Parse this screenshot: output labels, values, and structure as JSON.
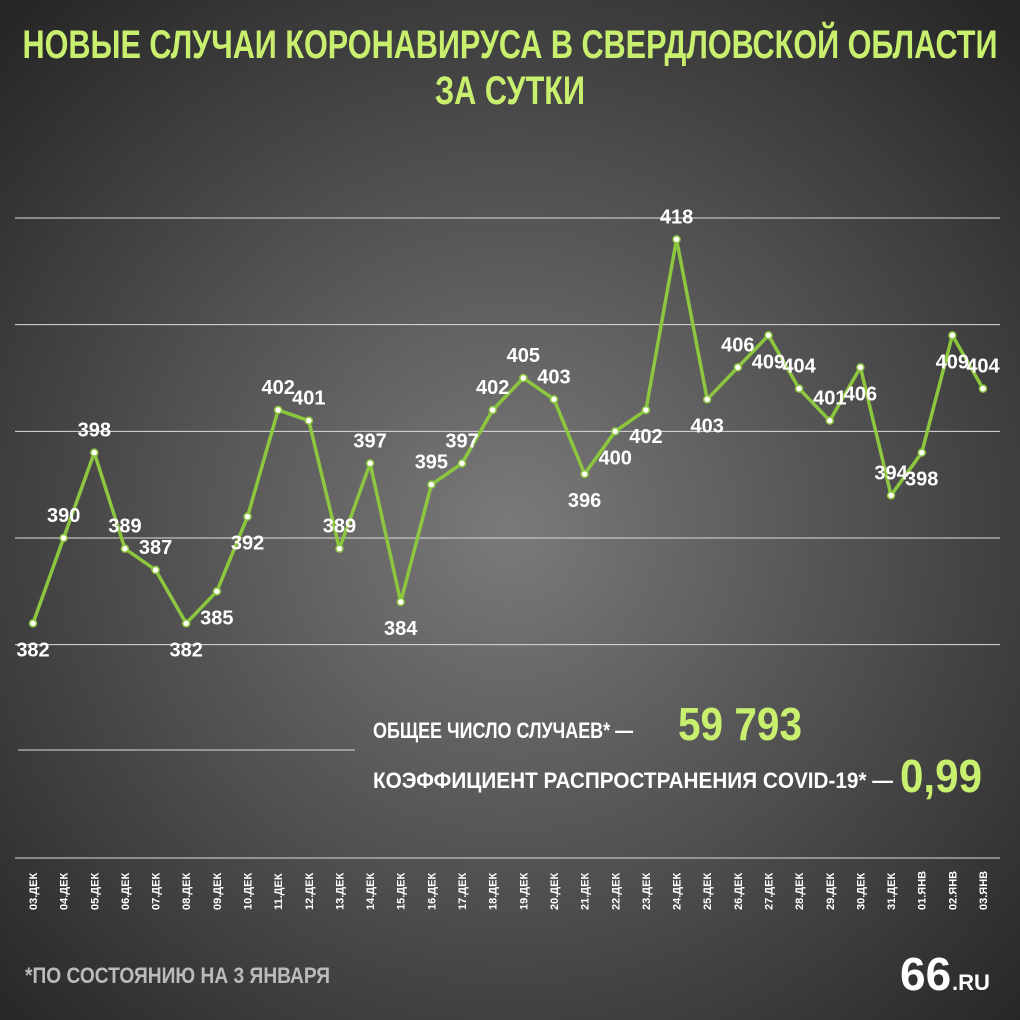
{
  "chart_data": {
    "type": "line",
    "title": [
      "НОВЫЕ СЛУЧАИ КОРОНАВИРУСА В СВЕРДЛОВСКОЙ ОБЛАСТИ",
      "ЗА СУТКИ"
    ],
    "categories": [
      "03.ДЕК",
      "04.ДЕК",
      "05.ДЕК",
      "06.ДЕК",
      "07.ДЕК",
      "08.ДЕК",
      "09.ДЕК",
      "10.ДЕК",
      "11.ДЕК",
      "12.ДЕК",
      "13.ДЕК",
      "14.ДЕК",
      "15.ДЕК",
      "16.ДЕК",
      "17.ДЕК",
      "18.ДЕК",
      "19.ДЕК",
      "20.ДЕК",
      "21.ДЕК",
      "22.ДЕК",
      "23.ДЕК",
      "24.ДЕК",
      "25.ДЕК",
      "26.ДЕК",
      "27.ДЕК",
      "28.ДЕК",
      "29.ДЕК",
      "30.ДЕК",
      "31.ДЕК",
      "01.ЯНВ",
      "02.ЯНВ",
      "03.ЯНВ"
    ],
    "values": [
      382,
      390,
      398,
      389,
      387,
      382,
      385,
      392,
      402,
      401,
      389,
      397,
      384,
      395,
      397,
      402,
      405,
      403,
      396,
      400,
      402,
      418,
      403,
      406,
      409,
      404,
      401,
      406,
      394,
      398,
      409,
      404
    ],
    "color": "#8dc63f",
    "ylim": [
      360,
      420
    ],
    "yticks": [
      380,
      390,
      400,
      410,
      420
    ],
    "grid": true,
    "annotations": [
      {
        "label": "ОБЩЕЕ ЧИСЛО СЛУЧАЕВ* —",
        "value": "59 793"
      },
      {
        "label": "КОЭФФИЦИЕНТ РАСПРОСТРАНЕНИЯ COVID-19* —",
        "value": "0,99"
      }
    ],
    "footnote": "*ПО СОСТОЯНИЮ НА 3 ЯНВАРЯ",
    "logo": [
      "66",
      ".RU"
    ]
  }
}
